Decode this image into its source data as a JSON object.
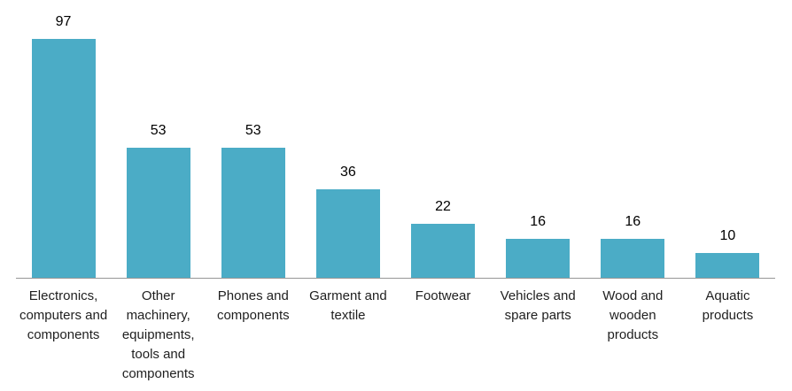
{
  "chart_data": {
    "type": "bar",
    "categories": [
      "Electronics, computers and components",
      "Other machinery, equipments, tools and components",
      "Phones and components",
      "Garment and textile",
      "Footwear",
      "Vehicles and spare parts",
      "Wood and wooden products",
      "Aquatic products"
    ],
    "values": [
      97,
      53,
      53,
      36,
      22,
      16,
      16,
      10
    ],
    "data_labels": [
      97,
      53,
      53,
      36,
      22,
      16,
      16,
      10
    ],
    "title": "",
    "xlabel": "",
    "ylabel": "",
    "ylim": [
      0,
      105
    ],
    "grid": false,
    "legend": false,
    "bar_color": "#4BACC6",
    "axis_line_color": "#969696",
    "value_label_color": "#000000",
    "category_label_color": "#1f1f1f",
    "background_color": "#ffffff"
  }
}
